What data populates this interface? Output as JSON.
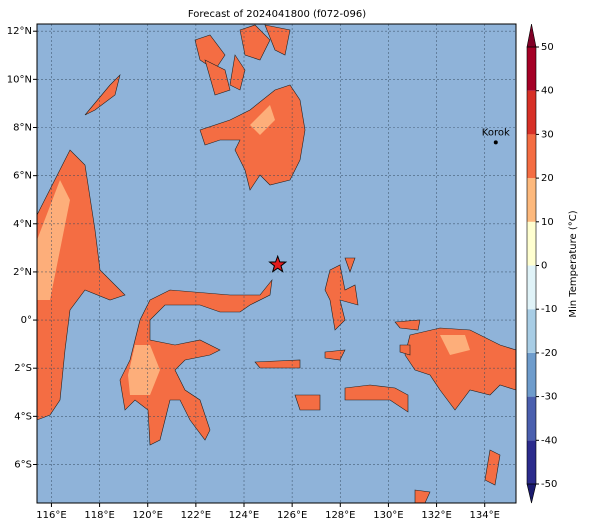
{
  "map": {
    "title": "Forecast of 2024041800 (f072-096)",
    "xlim": [
      115.4,
      135.3
    ],
    "ylim": [
      -7.6,
      12.3
    ],
    "xticks": [
      {
        "value": 116,
        "label": "116°E"
      },
      {
        "value": 118,
        "label": "118°E"
      },
      {
        "value": 120,
        "label": "120°E"
      },
      {
        "value": 122,
        "label": "122°E"
      },
      {
        "value": 124,
        "label": "124°E"
      },
      {
        "value": 126,
        "label": "126°E"
      },
      {
        "value": 128,
        "label": "128°E"
      },
      {
        "value": 130,
        "label": "130°E"
      },
      {
        "value": 132,
        "label": "132°E"
      },
      {
        "value": 134,
        "label": "134°E"
      }
    ],
    "yticks": [
      {
        "value": 12,
        "label": "12°N"
      },
      {
        "value": 10,
        "label": "10°N"
      },
      {
        "value": 8,
        "label": "8°N"
      },
      {
        "value": 6,
        "label": "6°N"
      },
      {
        "value": 4,
        "label": "4°N"
      },
      {
        "value": 2,
        "label": "2°N"
      },
      {
        "value": 0,
        "label": "0°"
      },
      {
        "value": -2,
        "label": "2°S"
      },
      {
        "value": -4,
        "label": "4°S"
      },
      {
        "value": -6,
        "label": "6°S"
      }
    ],
    "grid": true,
    "ocean_color": "#8fb3d9",
    "points": [
      {
        "label": "Korok",
        "lon": 134.46,
        "lat": 7.38
      }
    ],
    "star": {
      "lon": 125.4,
      "lat": 2.3,
      "color": "#e31a1c"
    },
    "colorbar": {
      "label": "Min Temperature (°C)",
      "ylim": [
        -50,
        50
      ],
      "ticks": [
        -50,
        -40,
        -30,
        -20,
        -10,
        0,
        10,
        20,
        30,
        40,
        50
      ],
      "colors": [
        "#2b2b8c",
        "#4a5fae",
        "#6e9ccc",
        "#a8cde5",
        "#e0f3f8",
        "#ffffd0",
        "#fdb97d",
        "#f46d43",
        "#d73027",
        "#a50026"
      ],
      "extend_colors": [
        "#1a1a6e",
        "#800026"
      ]
    }
  }
}
